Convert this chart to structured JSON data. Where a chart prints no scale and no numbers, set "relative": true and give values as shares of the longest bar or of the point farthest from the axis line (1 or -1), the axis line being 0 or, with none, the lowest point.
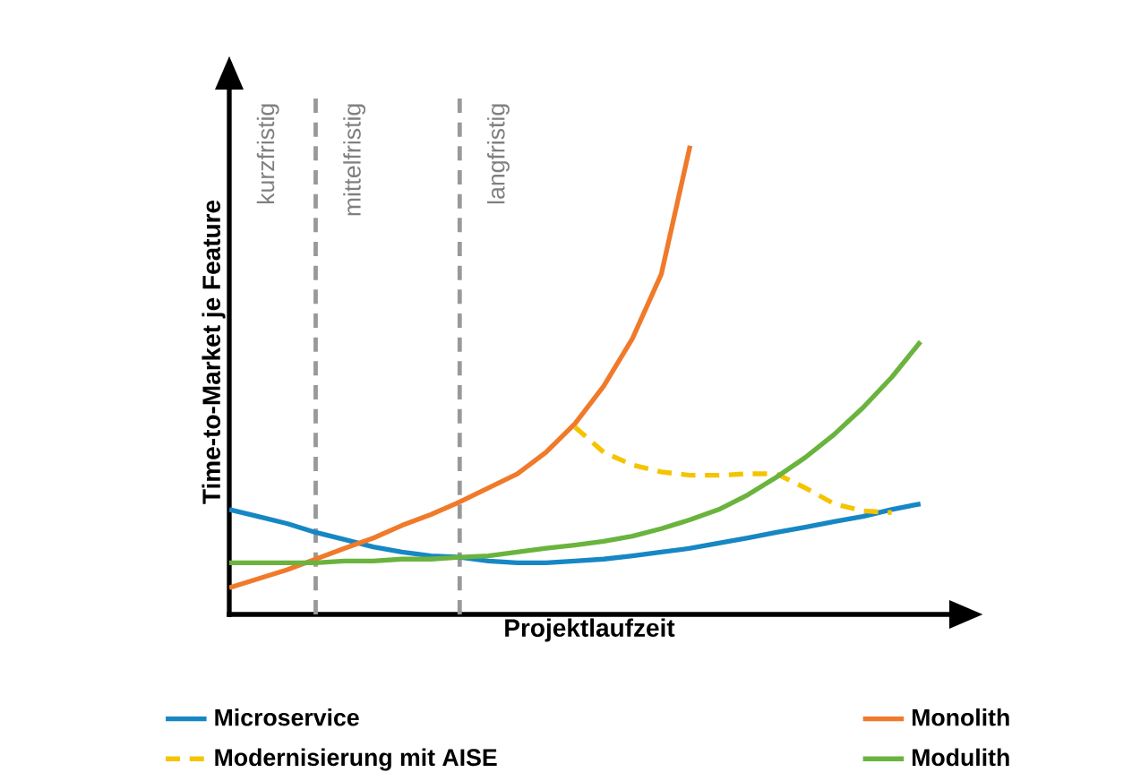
{
  "chart_data": {
    "type": "line",
    "relative": true,
    "xlabel": "Projektlaufzeit",
    "ylabel": "Time-to-Market je Feature",
    "legend": "bottom",
    "marker": "none",
    "categories": [
      null,
      null,
      null,
      null,
      null,
      null,
      null,
      null,
      null,
      null,
      null,
      null,
      null,
      null,
      null,
      null,
      null,
      null,
      null,
      null,
      null,
      null,
      null,
      null,
      null
    ],
    "series": [
      {
        "name": "Microservice",
        "color": "#1787c4",
        "values": [
          0.224,
          0.209,
          0.194,
          0.175,
          0.16,
          0.144,
          0.133,
          0.125,
          0.122,
          0.114,
          0.11,
          0.11,
          0.114,
          0.118,
          0.125,
          0.133,
          0.141,
          0.152,
          0.163,
          0.175,
          0.186,
          0.198,
          0.209,
          0.224,
          0.236
        ]
      },
      {
        "name": "Monolith",
        "color": "#f07a2a",
        "values": [
          0.057,
          0.076,
          0.095,
          0.118,
          0.141,
          0.163,
          0.19,
          0.213,
          0.24,
          0.27,
          0.3,
          0.346,
          0.407,
          0.487,
          0.589,
          0.726,
          1.0,
          null,
          null,
          null,
          null,
          null,
          null,
          null,
          null
        ]
      },
      {
        "name": "Modernisierung mit AISE",
        "color": "#f5c400",
        "line_style": "dashed",
        "values": [
          null,
          null,
          null,
          null,
          null,
          null,
          null,
          null,
          null,
          null,
          null,
          null,
          0.4,
          0.346,
          0.319,
          0.304,
          0.297,
          0.297,
          0.3,
          0.3,
          0.27,
          0.236,
          0.221,
          0.217,
          null
        ]
      },
      {
        "name": "Modulith",
        "color": "#6ab43e",
        "values": [
          0.11,
          0.11,
          0.11,
          0.11,
          0.114,
          0.114,
          0.118,
          0.118,
          0.122,
          0.125,
          0.133,
          0.141,
          0.148,
          0.156,
          0.167,
          0.183,
          0.202,
          0.224,
          0.255,
          0.293,
          0.335,
          0.384,
          0.441,
          0.506,
          0.582
        ]
      }
    ],
    "annotations": [
      "kurzfristig",
      "mittelfristig",
      "langfristig"
    ]
  }
}
